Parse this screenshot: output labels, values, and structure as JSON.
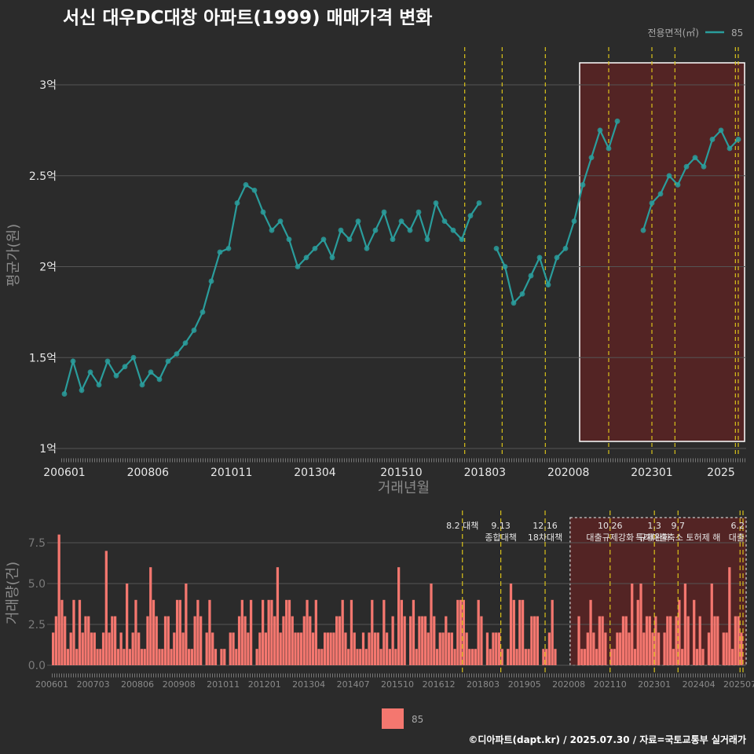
{
  "title": "서신 대우DC대창 아파트(1999) 매매가격 변화",
  "footer": "©디아파트(dapt.kr) / 2025.07.30 / 자료=국토교통부 실거래가",
  "colors": {
    "background": "#2b2b2b",
    "price_line": "#2a9d9c",
    "volume_bar": "#f4776f",
    "policy_line": "#d9c21a",
    "highlight_fill": "#5a2323",
    "grid": "#555555"
  },
  "chart_data": [
    {
      "type": "line",
      "title": "서신 대우DC대창 아파트(1999) 매매가격 변화",
      "xlabel": "거래년월",
      "ylabel": "평균가(원)",
      "x_ticks": [
        "200601",
        "200806",
        "201011",
        "201304",
        "201510",
        "201803",
        "202008",
        "202301",
        "2025"
      ],
      "y_ticks": [
        "1억",
        "1.5억",
        "2억",
        "2.5억",
        "3억"
      ],
      "ylim": [
        1.0,
        3.2
      ],
      "y_unit": "억",
      "grid": true,
      "legend": {
        "title": "전용면적(㎡)",
        "entries": [
          "85"
        ],
        "position": "top-right"
      },
      "series": [
        {
          "name": "85",
          "x": [
            "2006-01",
            "2006-04",
            "2006-07",
            "2006-10",
            "2007-01",
            "2007-04",
            "2007-07",
            "2007-10",
            "2008-01",
            "2008-04",
            "2008-07",
            "2008-10",
            "2009-01",
            "2009-04",
            "2009-07",
            "2009-10",
            "2010-01",
            "2010-04",
            "2010-07",
            "2010-10",
            "2011-01",
            "2011-04",
            "2011-07",
            "2011-10",
            "2012-01",
            "2012-04",
            "2012-07",
            "2012-10",
            "2013-01",
            "2013-04",
            "2013-07",
            "2013-10",
            "2014-01",
            "2014-04",
            "2014-07",
            "2014-10",
            "2015-01",
            "2015-04",
            "2015-07",
            "2015-10",
            "2016-01",
            "2016-04",
            "2016-07",
            "2016-10",
            "2017-01",
            "2017-04",
            "2017-07",
            "2017-10",
            "2018-01",
            "2018-04",
            "2018-07",
            "2018-10",
            "2019-01",
            "2019-04",
            "2019-07",
            "2019-10",
            "2020-01",
            "2020-04",
            "2020-07",
            "2020-10",
            "2021-01",
            "2021-04",
            "2021-07",
            "2021-10",
            "2022-01",
            "2022-04",
            "2022-07",
            "2022-10",
            "2023-01",
            "2023-04",
            "2023-07",
            "2023-10",
            "2024-01",
            "2024-04",
            "2024-07",
            "2024-10",
            "2025-01",
            "2025-04",
            "2025-07"
          ],
          "values": [
            1.3,
            1.48,
            1.32,
            1.42,
            1.35,
            1.48,
            1.4,
            1.45,
            1.5,
            1.35,
            1.42,
            1.38,
            1.48,
            1.52,
            1.58,
            1.65,
            1.75,
            1.92,
            2.08,
            2.1,
            2.35,
            2.45,
            2.42,
            2.3,
            2.2,
            2.25,
            2.15,
            2.0,
            2.05,
            2.1,
            2.15,
            2.05,
            2.2,
            2.15,
            2.25,
            2.1,
            2.2,
            2.3,
            2.15,
            2.25,
            2.2,
            2.3,
            2.15,
            2.35,
            2.25,
            2.2,
            2.15,
            2.28,
            2.35,
            null,
            2.1,
            2.0,
            1.8,
            1.85,
            1.95,
            2.05,
            1.9,
            2.05,
            2.1,
            2.25,
            2.45,
            2.6,
            2.75,
            2.65,
            2.8,
            null,
            null,
            2.2,
            2.35,
            2.4,
            2.5,
            2.45,
            2.55,
            2.6,
            2.55,
            2.7,
            2.75,
            2.65,
            2.7
          ]
        }
      ],
      "highlight_range": [
        "2021-01",
        "2025-07"
      ],
      "policy_lines": [
        "2017-08",
        "2018-09",
        "2019-12",
        "2021-10",
        "2023-01",
        "2023-09",
        "2025-06",
        "2025-07"
      ]
    },
    {
      "type": "bar",
      "ylabel": "거래량(건)",
      "x_ticks": [
        "200601",
        "200703",
        "200806",
        "200908",
        "201011",
        "201201",
        "201304",
        "201407",
        "201510",
        "201612",
        "201803",
        "201905",
        "202008",
        "202110",
        "202301",
        "202404",
        "202507"
      ],
      "y_ticks": [
        "0.0",
        "2.5",
        "5.0",
        "7.5"
      ],
      "ylim": [
        0,
        9
      ],
      "series": [
        {
          "name": "85",
          "x_start": "2006-01",
          "x_end": "2025-07"
        }
      ],
      "legend": {
        "entries": [
          "85"
        ],
        "position": "bottom"
      },
      "highlight_range": [
        "2020-09",
        "2025-07"
      ],
      "annotations": [
        {
          "date": "2017-08",
          "lines": [
            "8.2 대책"
          ]
        },
        {
          "date": "2018-09",
          "lines": [
            "9.13",
            "종합대책"
          ]
        },
        {
          "date": "2019-12",
          "lines": [
            "12.16",
            "18차대책"
          ]
        },
        {
          "date": "2021-10",
          "lines": [
            "10.26",
            "대출규제강화"
          ]
        },
        {
          "date": "2023-01",
          "lines": [
            "1.3",
            "규제완화"
          ]
        },
        {
          "date": "2023-09",
          "lines": [
            "9.7",
            "특례대출축소 토허제 해"
          ]
        },
        {
          "date": "2025-06",
          "lines": [
            "6.2",
            "대출"
          ]
        }
      ]
    }
  ]
}
